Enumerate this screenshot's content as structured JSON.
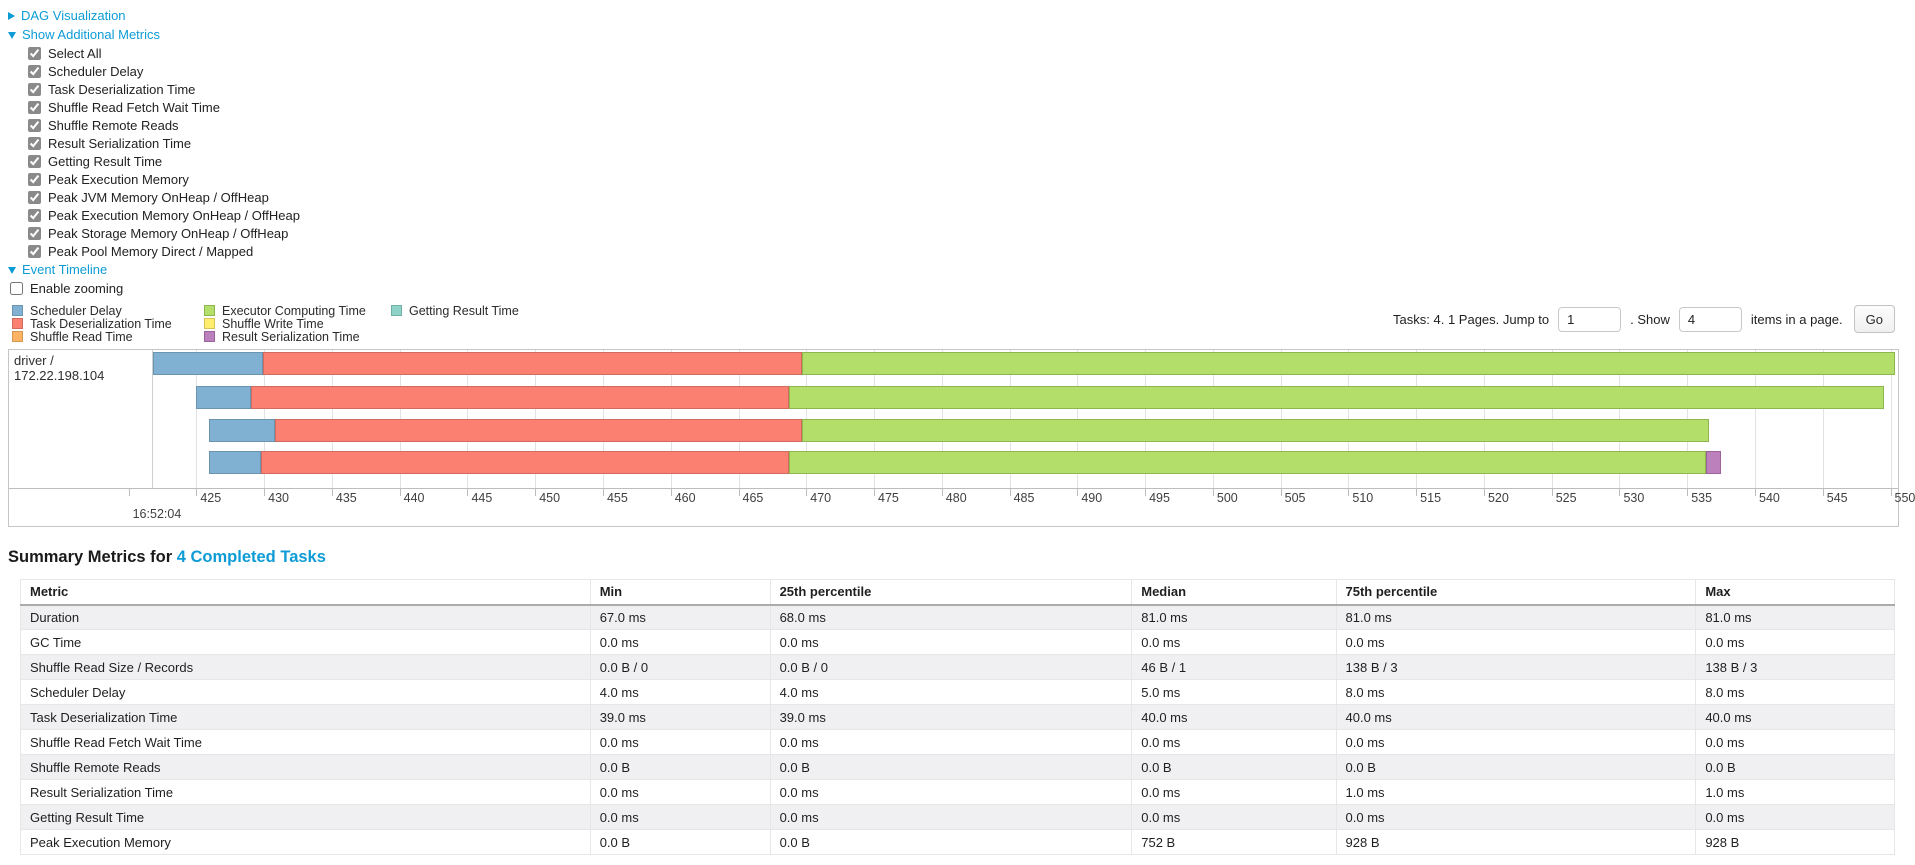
{
  "sections": {
    "dag": {
      "label": "DAG Visualization",
      "state": "collapsed"
    },
    "additional_metrics": {
      "label": "Show Additional Metrics",
      "state": "expanded"
    },
    "event_timeline": {
      "label": "Event Timeline",
      "state": "expanded"
    }
  },
  "metric_checkboxes": [
    {
      "label": "Select All",
      "checked": true
    },
    {
      "label": "Scheduler Delay",
      "checked": true
    },
    {
      "label": "Task Deserialization Time",
      "checked": true
    },
    {
      "label": "Shuffle Read Fetch Wait Time",
      "checked": true
    },
    {
      "label": "Shuffle Remote Reads",
      "checked": true
    },
    {
      "label": "Result Serialization Time",
      "checked": true
    },
    {
      "label": "Getting Result Time",
      "checked": true
    },
    {
      "label": "Peak Execution Memory",
      "checked": true
    },
    {
      "label": "Peak JVM Memory OnHeap / OffHeap",
      "checked": true
    },
    {
      "label": "Peak Execution Memory OnHeap / OffHeap",
      "checked": true
    },
    {
      "label": "Peak Storage Memory OnHeap / OffHeap",
      "checked": true
    },
    {
      "label": "Peak Pool Memory Direct / Mapped",
      "checked": true
    }
  ],
  "enable_zooming": {
    "label": "Enable zooming",
    "checked": false
  },
  "colors": {
    "scheduler_delay": {
      "fill": "#80B1D3",
      "stroke": "#6B94B0"
    },
    "task_deserialization": {
      "fill": "#FB8072",
      "stroke": "#D26B5F"
    },
    "shuffle_read": {
      "fill": "#FDB462",
      "stroke": "#D39752"
    },
    "executor_computing": {
      "fill": "#B3DE69",
      "stroke": "#8FB54E"
    },
    "shuffle_write": {
      "fill": "#FFED6F",
      "stroke": "#D6C45A"
    },
    "result_serialization": {
      "fill": "#BC80BD",
      "stroke": "#9A639B"
    },
    "getting_result": {
      "fill": "#8DD3C7",
      "stroke": "#72B0A5"
    },
    "link_blue": "#0d9cd6"
  },
  "legend": {
    "columns": [
      [
        {
          "key": "scheduler_delay",
          "label": "Scheduler Delay"
        },
        {
          "key": "task_deserialization",
          "label": "Task Deserialization Time"
        },
        {
          "key": "shuffle_read",
          "label": "Shuffle Read Time"
        }
      ],
      [
        {
          "key": "executor_computing",
          "label": "Executor Computing Time"
        },
        {
          "key": "shuffle_write",
          "label": "Shuffle Write Time"
        },
        {
          "key": "result_serialization",
          "label": "Result Serialization Time"
        }
      ],
      [
        {
          "key": "getting_result",
          "label": "Getting Result Time"
        }
      ]
    ]
  },
  "pagination": {
    "prefix": "Tasks: 4. 1 Pages. Jump to",
    "jump_value": "1",
    "mid": ". Show",
    "show_value": "4",
    "suffix": "items in a page.",
    "go_label": "Go"
  },
  "timeline": {
    "row_label": "driver / 172.22.198.104",
    "window": {
      "min": 421.8,
      "max": 550.55
    },
    "axis": {
      "major_label": "16:52:04",
      "ticks": [
        {
          "t": 420,
          "label": "",
          "major": "16:52:04"
        },
        {
          "t": 425,
          "label": "425"
        },
        {
          "t": 430,
          "label": "430"
        },
        {
          "t": 435,
          "label": "435"
        },
        {
          "t": 440,
          "label": "440"
        },
        {
          "t": 445,
          "label": "445"
        },
        {
          "t": 450,
          "label": "450"
        },
        {
          "t": 455,
          "label": "455"
        },
        {
          "t": 460,
          "label": "460"
        },
        {
          "t": 465,
          "label": "465"
        },
        {
          "t": 470,
          "label": "470"
        },
        {
          "t": 475,
          "label": "475"
        },
        {
          "t": 480,
          "label": "480"
        },
        {
          "t": 485,
          "label": "485"
        },
        {
          "t": 490,
          "label": "490"
        },
        {
          "t": 495,
          "label": "495"
        },
        {
          "t": 500,
          "label": "500"
        },
        {
          "t": 505,
          "label": "505"
        },
        {
          "t": 510,
          "label": "510"
        },
        {
          "t": 515,
          "label": "515"
        },
        {
          "t": 520,
          "label": "520"
        },
        {
          "t": 525,
          "label": "525"
        },
        {
          "t": 530,
          "label": "530"
        },
        {
          "t": 535,
          "label": "535"
        },
        {
          "t": 540,
          "label": "540"
        },
        {
          "t": 545,
          "label": "545"
        },
        {
          "t": 550,
          "label": "550"
        }
      ]
    },
    "tasks": [
      {
        "segments": [
          {
            "metric": "scheduler_delay",
            "start": 421.8,
            "end": 429.9
          },
          {
            "metric": "task_deserialization",
            "start": 429.9,
            "end": 469.7
          },
          {
            "metric": "executor_computing",
            "start": 469.7,
            "end": 550.3
          }
        ]
      },
      {
        "segments": [
          {
            "metric": "scheduler_delay",
            "start": 425.0,
            "end": 429.0
          },
          {
            "metric": "task_deserialization",
            "start": 429.0,
            "end": 468.7
          },
          {
            "metric": "executor_computing",
            "start": 468.7,
            "end": 549.5
          }
        ]
      },
      {
        "segments": [
          {
            "metric": "scheduler_delay",
            "start": 425.9,
            "end": 430.8
          },
          {
            "metric": "task_deserialization",
            "start": 430.8,
            "end": 469.7
          },
          {
            "metric": "executor_computing",
            "start": 469.7,
            "end": 536.6
          }
        ]
      },
      {
        "segments": [
          {
            "metric": "scheduler_delay",
            "start": 425.9,
            "end": 429.8
          },
          {
            "metric": "task_deserialization",
            "start": 429.8,
            "end": 468.7
          },
          {
            "metric": "executor_computing",
            "start": 468.7,
            "end": 536.4
          },
          {
            "metric": "result_serialization",
            "start": 536.4,
            "end": 537.5
          }
        ]
      }
    ]
  },
  "summary": {
    "title_prefix": "Summary Metrics for ",
    "title_link": "4 Completed Tasks"
  },
  "table": {
    "headers": [
      "Metric",
      "Min",
      "25th percentile",
      "Median",
      "75th percentile",
      "Max"
    ],
    "rows": [
      [
        "Duration",
        "67.0 ms",
        "68.0 ms",
        "81.0 ms",
        "81.0 ms",
        "81.0 ms"
      ],
      [
        "GC Time",
        "0.0 ms",
        "0.0 ms",
        "0.0 ms",
        "0.0 ms",
        "0.0 ms"
      ],
      [
        "Shuffle Read Size / Records",
        "0.0 B / 0",
        "0.0 B / 0",
        "46 B / 1",
        "138 B / 3",
        "138 B / 3"
      ],
      [
        "Scheduler Delay",
        "4.0 ms",
        "4.0 ms",
        "5.0 ms",
        "8.0 ms",
        "8.0 ms"
      ],
      [
        "Task Deserialization Time",
        "39.0 ms",
        "39.0 ms",
        "40.0 ms",
        "40.0 ms",
        "40.0 ms"
      ],
      [
        "Shuffle Read Fetch Wait Time",
        "0.0 ms",
        "0.0 ms",
        "0.0 ms",
        "0.0 ms",
        "0.0 ms"
      ],
      [
        "Shuffle Remote Reads",
        "0.0 B",
        "0.0 B",
        "0.0 B",
        "0.0 B",
        "0.0 B"
      ],
      [
        "Result Serialization Time",
        "0.0 ms",
        "0.0 ms",
        "0.0 ms",
        "1.0 ms",
        "1.0 ms"
      ],
      [
        "Getting Result Time",
        "0.0 ms",
        "0.0 ms",
        "0.0 ms",
        "0.0 ms",
        "0.0 ms"
      ],
      [
        "Peak Execution Memory",
        "0.0 B",
        "0.0 B",
        "752 B",
        "928 B",
        "928 B"
      ]
    ]
  }
}
